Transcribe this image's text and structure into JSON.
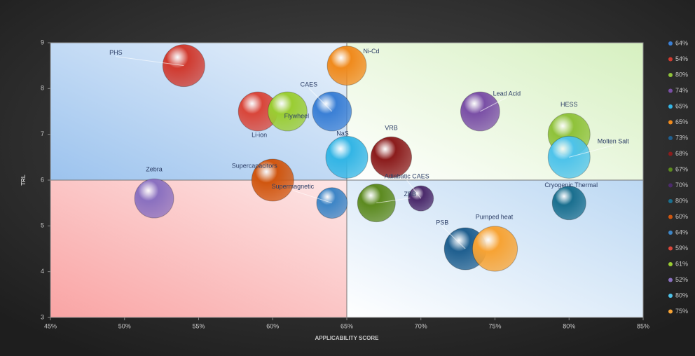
{
  "chart_data": {
    "type": "bubble",
    "xlabel": "APPLICABILITY SCORE",
    "ylabel": "TRL",
    "xlim": [
      45,
      85
    ],
    "ylim": [
      3,
      9
    ],
    "xticks": [
      {
        "value": 45,
        "label": "45%"
      },
      {
        "value": 50,
        "label": "50%"
      },
      {
        "value": 55,
        "label": "55%"
      },
      {
        "value": 60,
        "label": "60%"
      },
      {
        "value": 65,
        "label": "65%"
      },
      {
        "value": 70,
        "label": "70%"
      },
      {
        "value": 75,
        "label": "75%"
      },
      {
        "value": 80,
        "label": "80%"
      },
      {
        "value": 85,
        "label": "85%"
      }
    ],
    "yticks": [
      3,
      4,
      5,
      6,
      7,
      8,
      9
    ],
    "divider_x": 65,
    "divider_y": 6,
    "legend": "right",
    "series": [
      {
        "name": "CAES",
        "legend_label": "64%",
        "x": 64,
        "y": 7.5,
        "size": 9.3,
        "color": "#3a7fd5"
      },
      {
        "name": "PHS",
        "legend_label": "54%",
        "x": 54,
        "y": 8.5,
        "size": 10,
        "color": "#d03a2f"
      },
      {
        "name": "HESS",
        "legend_label": "80%",
        "x": 80,
        "y": 7,
        "size": 10,
        "color": "#8fc23a"
      },
      {
        "name": "Lead Acid",
        "legend_label": "74%",
        "x": 74,
        "y": 7.5,
        "size": 9.3,
        "color": "#7a4fa6"
      },
      {
        "name": "NaS",
        "legend_label": "65%",
        "x": 65,
        "y": 6.5,
        "size": 10,
        "color": "#33b5e5"
      },
      {
        "name": "Ni-Cd",
        "legend_label": "65%",
        "x": 65,
        "y": 8.5,
        "size": 9.3,
        "color": "#f08a1c"
      },
      {
        "name": "PSB",
        "legend_label": "73%",
        "x": 73,
        "y": 4.5,
        "size": 10,
        "color": "#1f5f8f"
      },
      {
        "name": "VRB",
        "legend_label": "68%",
        "x": 68,
        "y": 6.5,
        "size": 9.7,
        "color": "#8b1c1c"
      },
      {
        "name": "ZBB",
        "legend_label": "67%",
        "x": 67,
        "y": 5.5,
        "size": 9,
        "color": "#5c8a1f"
      },
      {
        "name": "Adiabatic CAES",
        "legend_label": "70%",
        "x": 70,
        "y": 5.6,
        "size": 6,
        "color": "#4b2a6b"
      },
      {
        "name": "Cryogenic Thermal",
        "legend_label": "80%",
        "x": 80,
        "y": 5.5,
        "size": 8,
        "color": "#1a6f8f"
      },
      {
        "name": "Supercapacitors",
        "legend_label": "60%",
        "x": 60,
        "y": 6,
        "size": 10,
        "color": "#d0560f"
      },
      {
        "name": "Supermagnetic",
        "legend_label": "64%",
        "x": 64,
        "y": 5.5,
        "size": 7.3,
        "color": "#3d85c6"
      },
      {
        "name": "Li-ion",
        "legend_label": "59%",
        "x": 59,
        "y": 7.5,
        "size": 9.3,
        "color": "#d9463a"
      },
      {
        "name": "Flywheel",
        "legend_label": "61%",
        "x": 61,
        "y": 7.5,
        "size": 9.3,
        "color": "#9acd32"
      },
      {
        "name": "Zebra",
        "legend_label": "52%",
        "x": 52,
        "y": 5.6,
        "size": 9.3,
        "color": "#8a70c0"
      },
      {
        "name": "Molten Salt",
        "legend_label": "80%",
        "x": 80,
        "y": 6.5,
        "size": 10,
        "color": "#4ec3ea"
      },
      {
        "name": "Pumped heat",
        "legend_label": "75%",
        "x": 75,
        "y": 4.5,
        "size": 10.7,
        "color": "#f7a334"
      }
    ]
  }
}
